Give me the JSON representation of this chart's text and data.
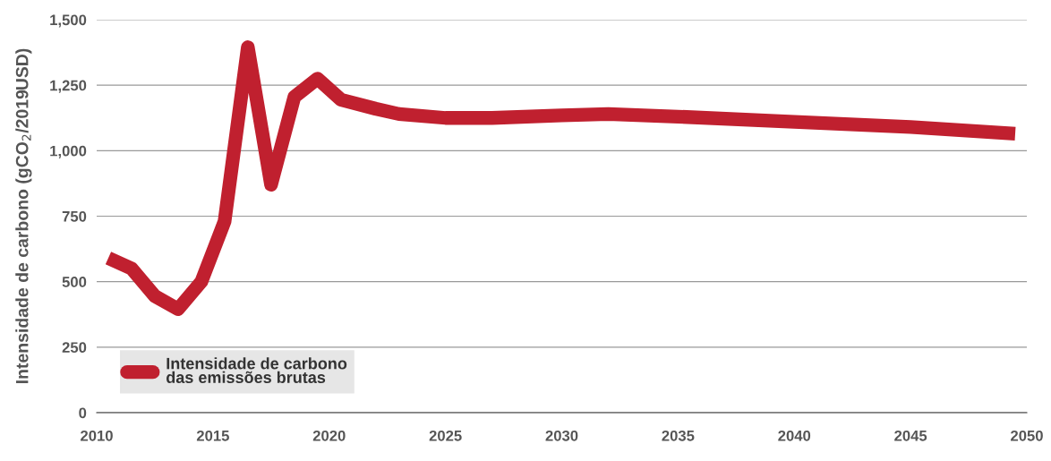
{
  "chart_data": {
    "type": "line",
    "ylabel": "Intensidade de carbono (gCO$_{2}$/2019USD)",
    "x": [
      2010.5,
      2011.5,
      2012.5,
      2013.5,
      2014.5,
      2015.5,
      2016.5,
      2017.5,
      2018.5,
      2019.5,
      2020.5,
      2022,
      2023,
      2025,
      2027,
      2030,
      2032,
      2035,
      2040,
      2045,
      2049.5
    ],
    "series": [
      {
        "name": "Intensidade de carbono\ndas emissões brutas",
        "color": "#c0202f",
        "values": [
          590,
          550,
          445,
          395,
          500,
          730,
          1395,
          870,
          1205,
          1275,
          1195,
          1160,
          1140,
          1125,
          1125,
          1135,
          1140,
          1130,
          1110,
          1090,
          1065
        ]
      }
    ],
    "xlim": [
      2010,
      2050
    ],
    "xticks": [
      2010,
      2015,
      2020,
      2025,
      2030,
      2035,
      2040,
      2045,
      2050
    ],
    "ylim": [
      0,
      1500
    ],
    "yticks": [
      0,
      250,
      500,
      {
        "value": 750,
        "label": "750"
      },
      {
        "value": 1000,
        "label": "1,000"
      },
      {
        "value": 1250,
        "label": "1,250"
      },
      {
        "value": 1500,
        "label": "1,500"
      }
    ],
    "grid": "y",
    "legend": "bottom left",
    "marker": "none",
    "line_style": "solid"
  }
}
